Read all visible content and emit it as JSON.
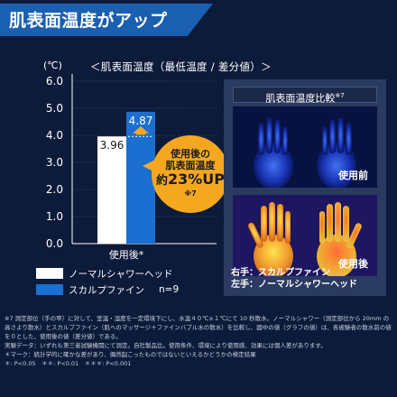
{
  "header": {
    "title": "肌表面温度がアップ"
  },
  "chart_data": {
    "type": "bar",
    "title": "＜肌表面温度（最低温度 / 差分値）＞",
    "unit": "(℃)",
    "categories": [
      "使用後*"
    ],
    "series": [
      {
        "name": "ノーマルシャワーヘッド",
        "values": [
          3.96
        ],
        "color": "#ffffff"
      },
      {
        "name": "スカルプファイン",
        "values": [
          4.87
        ],
        "color": "#1a6fd0"
      }
    ],
    "yticks": [
      "0.0",
      "1.0",
      "2.0",
      "3.0",
      "4.0",
      "5.0",
      "6.0"
    ],
    "ylim": [
      0,
      6
    ],
    "value_labels": [
      "3.96",
      "4.87"
    ],
    "n_label": "n=9"
  },
  "callout": {
    "line1": "使用後の",
    "line2": "肌表面温度",
    "prefix": "約",
    "pct": "23%UP",
    "note": "※7"
  },
  "thermo": {
    "title": "肌表面温度比較",
    "title_note": "※7",
    "before_label": "使用前",
    "after_label": "使用後",
    "right_hand": "右手：スカルプファイン",
    "left_hand": "左手：ノーマルシャワーヘッド"
  },
  "footnotes": [
    "※7 測定部位（手の甲）に対して、室温・湿度を一定環境下にし、水温４０℃±１℃にて 10 秒散水。ノーマルシャワー（測定部位から 20mm の高さより散水）とスカルプファイン（肌へのマッサージ＋ファインバブル水の散水）を比較し、図中の値（グラフの値）は、各被験者の散水前の値を０とした、使用後の値（差分値）である。",
    "実験データ：いずれも第三者試験機関にて測定。自社製品比。使用条件、環境により使用感、効果には個人差があります。",
    "＊マーク：統計学的に確かな差があり、偶然起こったものではないといえるかどうかの検定結果",
    "＊: P<0.05　＊＊: P<0.01　＊＊＊: P<0.001"
  ],
  "colors": {
    "background": "#0d1b3a",
    "accent": "#1a5fb0",
    "bubble": "#f5a81f"
  }
}
